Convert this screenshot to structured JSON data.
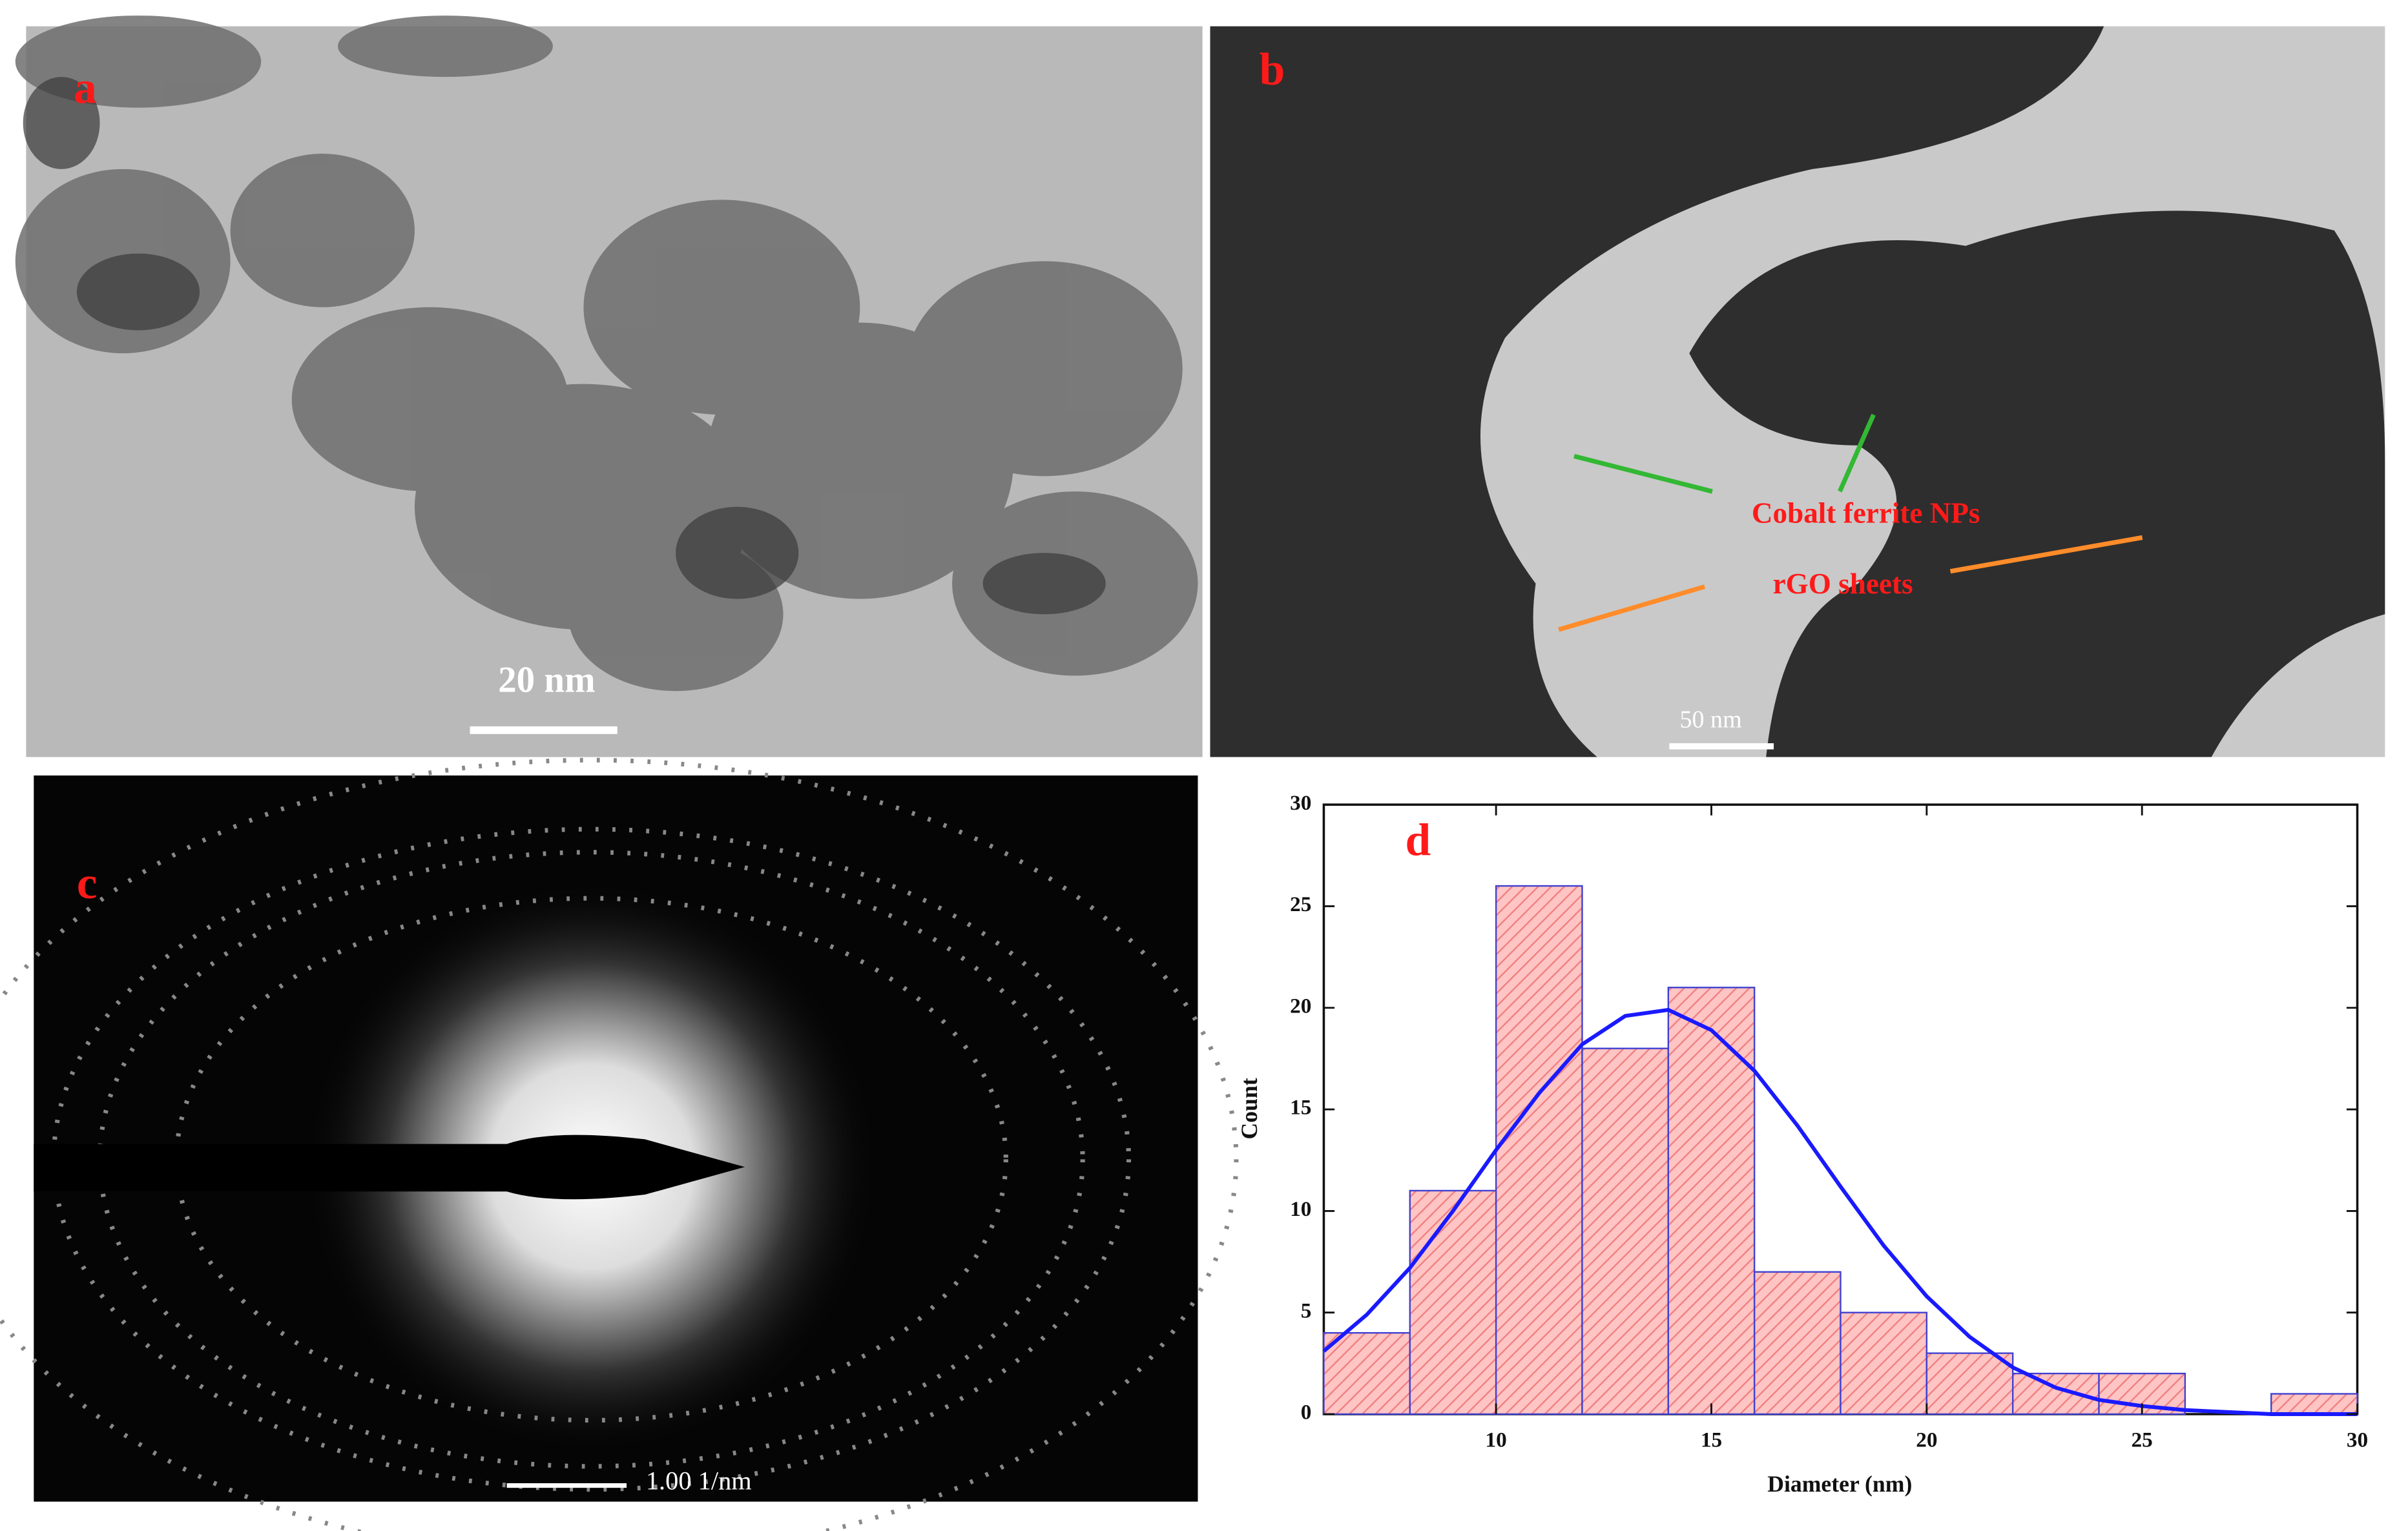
{
  "panels": {
    "a": {
      "label": "a",
      "scale_bar": "20 nm"
    },
    "b": {
      "label": "b",
      "annotations": [
        "Cobalt ferrite NPs",
        "rGO sheets"
      ],
      "scale_bar": "50 nm"
    },
    "c": {
      "label": "c",
      "scale_bar": "1.00 1/nm"
    }
  },
  "chart_data": {
    "type": "histogram",
    "label": "d",
    "x_label": "Diameter (nm)",
    "y_label": "Count",
    "bins": [
      6,
      8,
      10,
      12,
      14,
      16,
      18,
      20,
      22,
      24,
      26,
      28,
      30
    ],
    "counts": [
      4,
      11,
      26,
      18,
      21,
      7,
      5,
      3,
      2,
      2,
      0,
      1
    ],
    "color": "#ffb8b8",
    "edge_color": "#4040d0",
    "fit": {
      "color": "#1a1aff",
      "x": [
        6,
        7,
        8,
        9,
        10,
        11,
        12,
        13,
        14,
        15,
        16,
        17,
        18,
        19,
        20,
        21,
        22,
        23,
        24,
        25,
        26,
        27,
        28,
        29,
        30
      ],
      "values": [
        3.1,
        4.9,
        7.2,
        10.0,
        13.0,
        15.8,
        18.2,
        19.6,
        19.9,
        18.9,
        16.9,
        14.2,
        11.2,
        8.3,
        5.8,
        3.8,
        2.3,
        1.3,
        0.7,
        0.4,
        0.2,
        0.1,
        0.0,
        0.0,
        0.0
      ]
    },
    "xlim": [
      6,
      30
    ],
    "xticks": [
      10,
      15,
      20,
      25,
      30
    ],
    "ylim": [
      0,
      30
    ],
    "yticks": [
      0,
      5,
      10,
      15,
      20,
      25,
      30
    ]
  }
}
